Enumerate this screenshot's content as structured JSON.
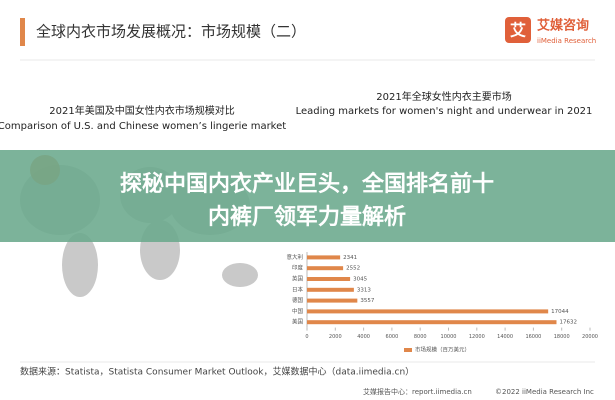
{
  "header": {
    "title": "全球内衣市场发展概况：市场规模（二）"
  },
  "logo": {
    "name": "艾媒咨询",
    "sub": "iiMedia Research"
  },
  "left_chart": {
    "title": "2021年美国及中国女性内衣市场规模对比",
    "subtitle": "Comparison of U.S. and Chinese women’s lingerie market"
  },
  "chart_data": {
    "type": "barh",
    "title": "2021年全球女性内衣主要市场",
    "subtitle": "Leading markets for women's night and underwear in 2021",
    "categories": [
      "意大利",
      "印度",
      "英国",
      "日本",
      "德国",
      "中国",
      "美国"
    ],
    "values": [
      2341,
      2552,
      3045,
      3313,
      3557,
      17044,
      17632
    ],
    "color": "#e0874a",
    "xlim": [
      0,
      20000
    ],
    "xticks": [
      0,
      2000,
      4000,
      6000,
      8000,
      10000,
      12000,
      14000,
      16000,
      18000,
      20000
    ],
    "legend": "市场规模（百万美元）"
  },
  "banner": {
    "line1": "探秘中国内衣产业巨头，全国排名前十",
    "line2": "内裤厂领军力量解析"
  },
  "footer": {
    "source": "数据来源：Statista，Statista Consumer Market Outlook，艾媒数据中心（data.iimedia.cn）",
    "report": "艾媒报告中心：report.iimedia.cn",
    "copyright": "©2022  iiMedia Research Inc"
  }
}
